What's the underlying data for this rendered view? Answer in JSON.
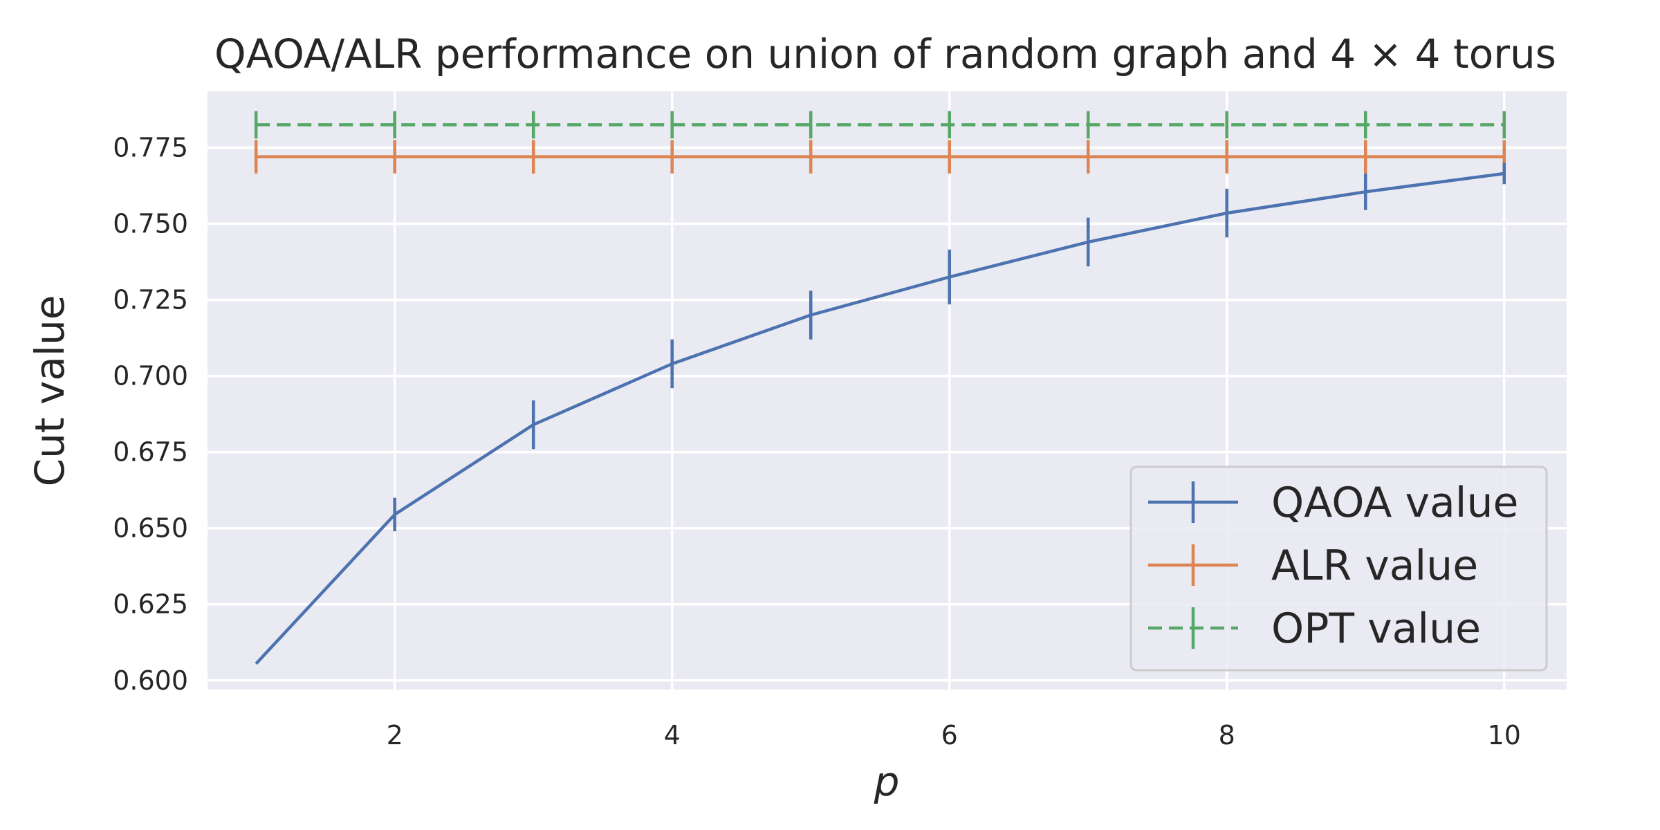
{
  "chart_data": {
    "type": "line",
    "title": "QAOA/ALR performance on union of random graph and 4 × 4 torus",
    "xlabel": "p",
    "ylabel": "Cut value",
    "xlim": [
      0.65,
      10.45
    ],
    "ylim": [
      0.597,
      0.7935
    ],
    "x_ticks": [
      2,
      4,
      6,
      8,
      10
    ],
    "y_ticks": [
      0.6,
      0.625,
      0.65,
      0.675,
      0.7,
      0.725,
      0.75,
      0.775
    ],
    "y_tick_labels": [
      "0.600",
      "0.625",
      "0.650",
      "0.675",
      "0.700",
      "0.725",
      "0.750",
      "0.775"
    ],
    "grid": true,
    "legend_position": "lower-right",
    "x": [
      1,
      2,
      3,
      4,
      5,
      6,
      7,
      8,
      9,
      10
    ],
    "series": [
      {
        "name": "QAOA value",
        "color": "#4c72b0",
        "style": "solid",
        "values": [
          0.6055,
          0.6545,
          0.684,
          0.704,
          0.72,
          0.7325,
          0.744,
          0.7535,
          0.7605,
          0.7665
        ],
        "errors": [
          0,
          0.0055,
          0.008,
          0.008,
          0.008,
          0.009,
          0.008,
          0.008,
          0.006,
          0.0035
        ]
      },
      {
        "name": "ALR value",
        "color": "#dd8452",
        "style": "solid",
        "values": [
          0.772,
          0.772,
          0.772,
          0.772,
          0.772,
          0.772,
          0.772,
          0.772,
          0.772,
          0.772
        ],
        "errors": [
          0.0055,
          0.0055,
          0.0055,
          0.0055,
          0.0055,
          0.0055,
          0.0055,
          0.0055,
          0.0055,
          0.0055
        ]
      },
      {
        "name": "OPT value",
        "color": "#55a868",
        "style": "dashed",
        "values": [
          0.7825,
          0.7825,
          0.7825,
          0.7825,
          0.7825,
          0.7825,
          0.7825,
          0.7825,
          0.7825,
          0.7825
        ],
        "errors": [
          0.0045,
          0.0045,
          0.0045,
          0.0045,
          0.0045,
          0.0045,
          0.0045,
          0.0045,
          0.0045,
          0.0045
        ]
      }
    ]
  }
}
